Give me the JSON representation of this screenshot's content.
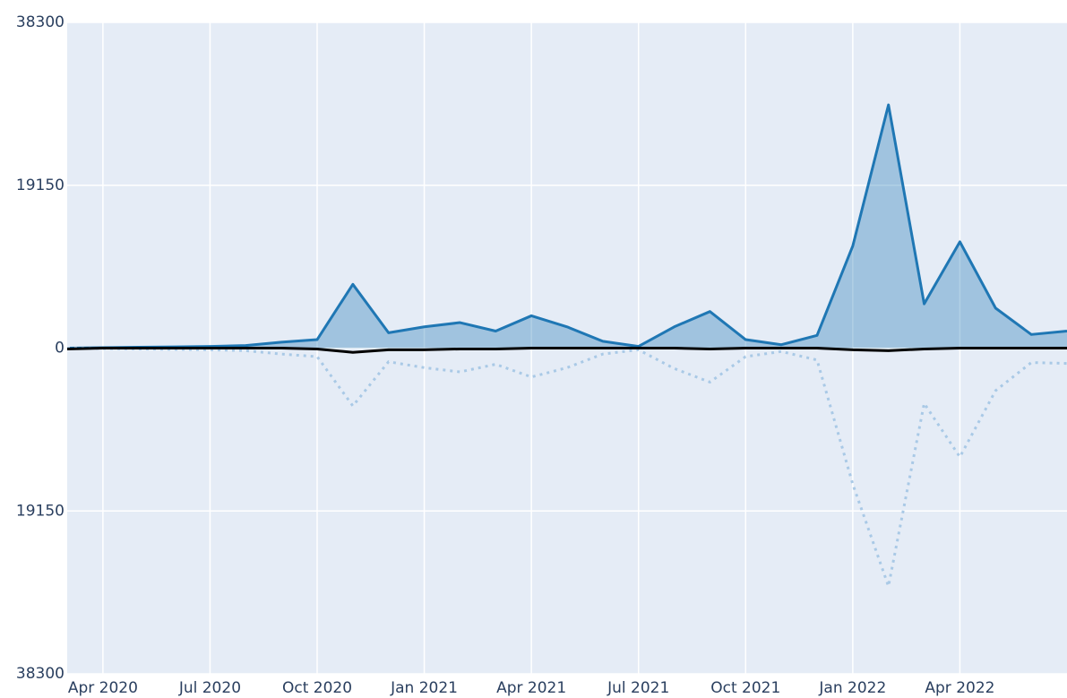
{
  "chart_data": {
    "type": "line",
    "x": [
      "2020-03",
      "2020-04",
      "2020-05",
      "2020-06",
      "2020-07",
      "2020-08",
      "2020-09",
      "2020-10",
      "2020-11",
      "2020-12",
      "2021-01",
      "2021-02",
      "2021-03",
      "2021-04",
      "2021-05",
      "2021-06",
      "2021-07",
      "2021-08",
      "2021-09",
      "2021-10",
      "2021-11",
      "2021-12",
      "2022-01",
      "2022-02",
      "2022-03",
      "2022-04",
      "2022-05",
      "2022-06",
      "2022-07"
    ],
    "series": [
      {
        "color": "#1f77b4",
        "fill": "tozeroy",
        "dash": "solid",
        "values": [
          0,
          50,
          100,
          150,
          200,
          300,
          700,
          1000,
          7500,
          1800,
          2500,
          3000,
          2000,
          3800,
          2500,
          800,
          200,
          2500,
          4300,
          1000,
          400,
          1500,
          12000,
          28600,
          5200,
          12500,
          4700,
          1600,
          2000
        ]
      },
      {
        "color": "#a9c9e6",
        "fill": "none",
        "dash": "dot",
        "values": [
          0,
          -50,
          -100,
          -150,
          -200,
          -300,
          -700,
          -1000,
          -6800,
          -1600,
          -2300,
          -2800,
          -1900,
          -3400,
          -2300,
          -700,
          -200,
          -2400,
          -4000,
          -1000,
          -400,
          -1400,
          -16000,
          -28000,
          -6500,
          -12800,
          -5000,
          -1700,
          -1800
        ]
      },
      {
        "color": "#000000",
        "fill": "none",
        "dash": "solid",
        "values": [
          -100,
          0,
          0,
          0,
          0,
          0,
          0,
          -100,
          -500,
          -200,
          -200,
          -100,
          -100,
          0,
          0,
          0,
          0,
          0,
          -100,
          0,
          0,
          0,
          -200,
          -300,
          -100,
          0,
          0,
          0,
          0
        ]
      }
    ],
    "xlim": [
      "2020-03",
      "2022-07"
    ],
    "xticks": [
      {
        "value": "2020-04",
        "label": "Apr 2020"
      },
      {
        "value": "2020-07",
        "label": "Jul 2020"
      },
      {
        "value": "2020-10",
        "label": "Oct 2020"
      },
      {
        "value": "2021-01",
        "label": "Jan 2021"
      },
      {
        "value": "2021-04",
        "label": "Apr 2021"
      },
      {
        "value": "2021-07",
        "label": "Jul 2021"
      },
      {
        "value": "2021-10",
        "label": "Oct 2021"
      },
      {
        "value": "2022-01",
        "label": "Jan 2022"
      },
      {
        "value": "2022-04",
        "label": "Apr 2022"
      }
    ],
    "ylim": [
      -38300,
      38300
    ],
    "yticks": [
      38300,
      19150,
      0,
      {
        "value": -19150,
        "label": "19150"
      },
      {
        "value": -38300,
        "label": "38300"
      }
    ],
    "grid": true
  }
}
